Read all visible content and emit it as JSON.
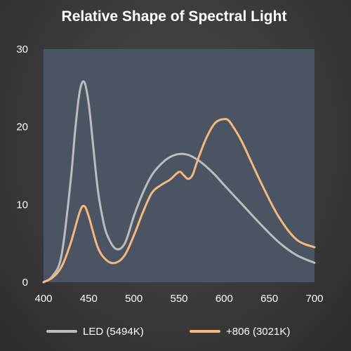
{
  "chart_data": {
    "type": "line",
    "title": "Relative Shape of Spectral Light",
    "xlabel": "",
    "ylabel": "",
    "xlim": [
      400,
      700
    ],
    "ylim": [
      0,
      30
    ],
    "x_ticks": [
      400,
      450,
      500,
      550,
      600,
      650,
      700
    ],
    "y_ticks": [
      0,
      10,
      20,
      30
    ],
    "grid": false,
    "legend_position": "bottom",
    "plot_background": "#4a5463",
    "series": [
      {
        "name": "LED (5494K)",
        "color": "#bcbcbc",
        "x": [
          400,
          410,
          420,
          430,
          435,
          440,
          445,
          450,
          455,
          460,
          465,
          470,
          480,
          490,
          500,
          510,
          520,
          530,
          540,
          550,
          560,
          570,
          580,
          590,
          600,
          620,
          640,
          660,
          680,
          700
        ],
        "y": [
          0,
          0.8,
          3.5,
          13,
          19.5,
          24.5,
          25.8,
          23,
          17.5,
          12,
          8.5,
          6.2,
          4.3,
          5,
          8.5,
          11.5,
          13.8,
          15.2,
          16.1,
          16.5,
          16.4,
          15.8,
          14.9,
          13.8,
          12.5,
          10,
          7.5,
          5.2,
          3.5,
          2.5
        ]
      },
      {
        "name": "+806 (3021K)",
        "color": "#f5b87a",
        "x": [
          400,
          410,
          420,
          430,
          440,
          445,
          450,
          460,
          470,
          480,
          490,
          500,
          510,
          520,
          530,
          540,
          550,
          555,
          560,
          565,
          570,
          580,
          590,
          600,
          605,
          610,
          620,
          640,
          660,
          680,
          700
        ],
        "y": [
          0,
          0.6,
          2,
          5,
          9,
          9.8,
          8.5,
          4.5,
          2.8,
          2.5,
          3.5,
          6,
          9,
          11.5,
          12.5,
          13.2,
          14.2,
          13.8,
          13.3,
          13.8,
          15.5,
          18.5,
          20.5,
          21,
          20.8,
          20,
          18,
          13,
          8.5,
          5.5,
          4.5
        ]
      }
    ]
  }
}
